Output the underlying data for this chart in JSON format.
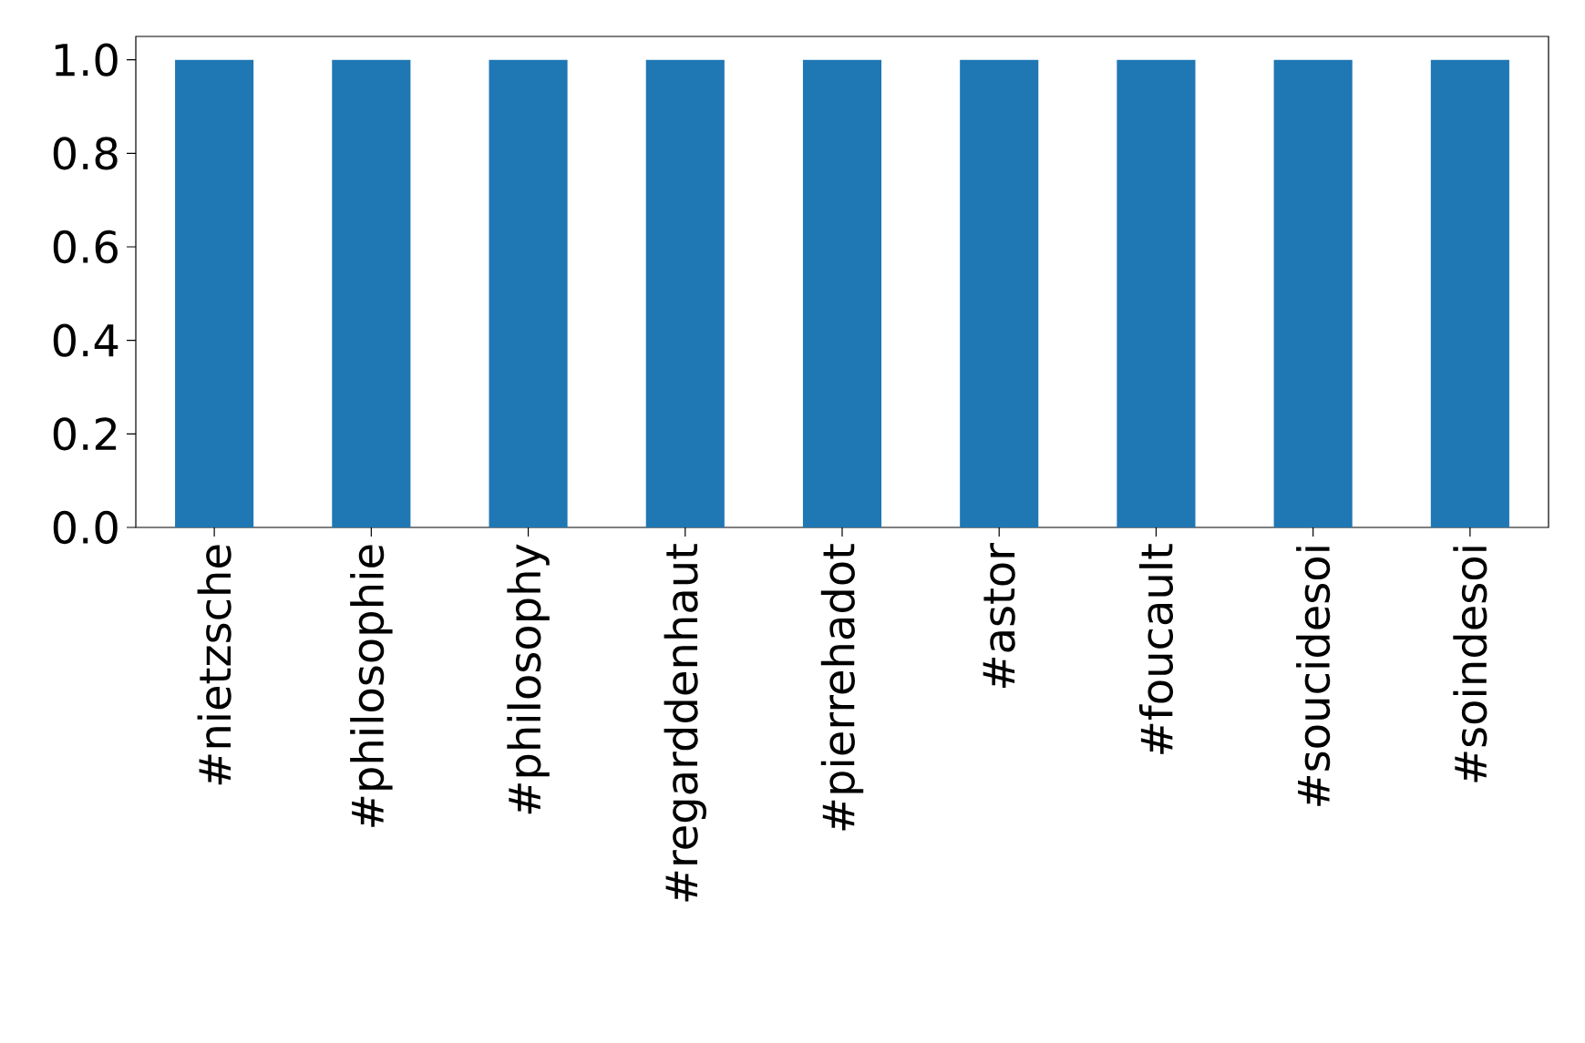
{
  "chart_data": {
    "type": "bar",
    "categories": [
      "#nietzsche",
      "#philosophie",
      "#philosophy",
      "#regarddenhaut",
      "#pierrehadot",
      "#astor",
      "#foucault",
      "#soucidesoi",
      "#soindesoi"
    ],
    "values": [
      1,
      1,
      1,
      1,
      1,
      1,
      1,
      1,
      1
    ],
    "color": "#1f77b4",
    "ylim": [
      0,
      1.05
    ],
    "yticks": [
      {
        "value": 0,
        "label": "0.0"
      },
      0.2,
      0.4,
      0.6,
      0.8,
      {
        "value": 1,
        "label": "1.0"
      }
    ],
    "grid": false,
    "legend": false
  }
}
